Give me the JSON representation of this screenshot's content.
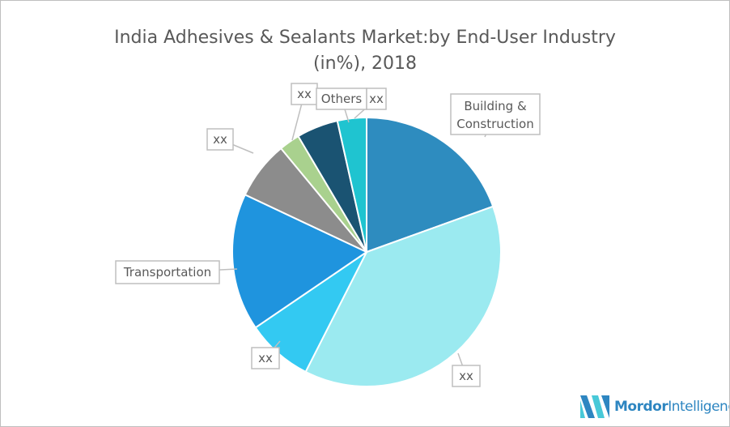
{
  "chart_data": {
    "type": "pie",
    "title": "India Adhesives & Sealants Market:by End-User Industry",
    "title_line2": "(in%), 2018",
    "slices": [
      {
        "label": "Building & Construction",
        "value": 19.5,
        "color": "#2e8cbf"
      },
      {
        "label": "xx",
        "value": 38,
        "color": "#9beaf0"
      },
      {
        "label": "xx",
        "value": 8,
        "color": "#33c9f2"
      },
      {
        "label": "Transportation",
        "value": 16.5,
        "color": "#1f94de"
      },
      {
        "label": "xx",
        "value": 7,
        "color": "#8c8c8c"
      },
      {
        "label": "xx",
        "value": 2.5,
        "color": "#a9d18e"
      },
      {
        "label": "Others",
        "value": 5,
        "color": "#1a5372"
      },
      {
        "label": "xx",
        "value": 3.5,
        "color": "#1fc4d0"
      }
    ],
    "legend": "none"
  },
  "logo": {
    "bold": "Mordor",
    "rest": "Intelligence"
  }
}
